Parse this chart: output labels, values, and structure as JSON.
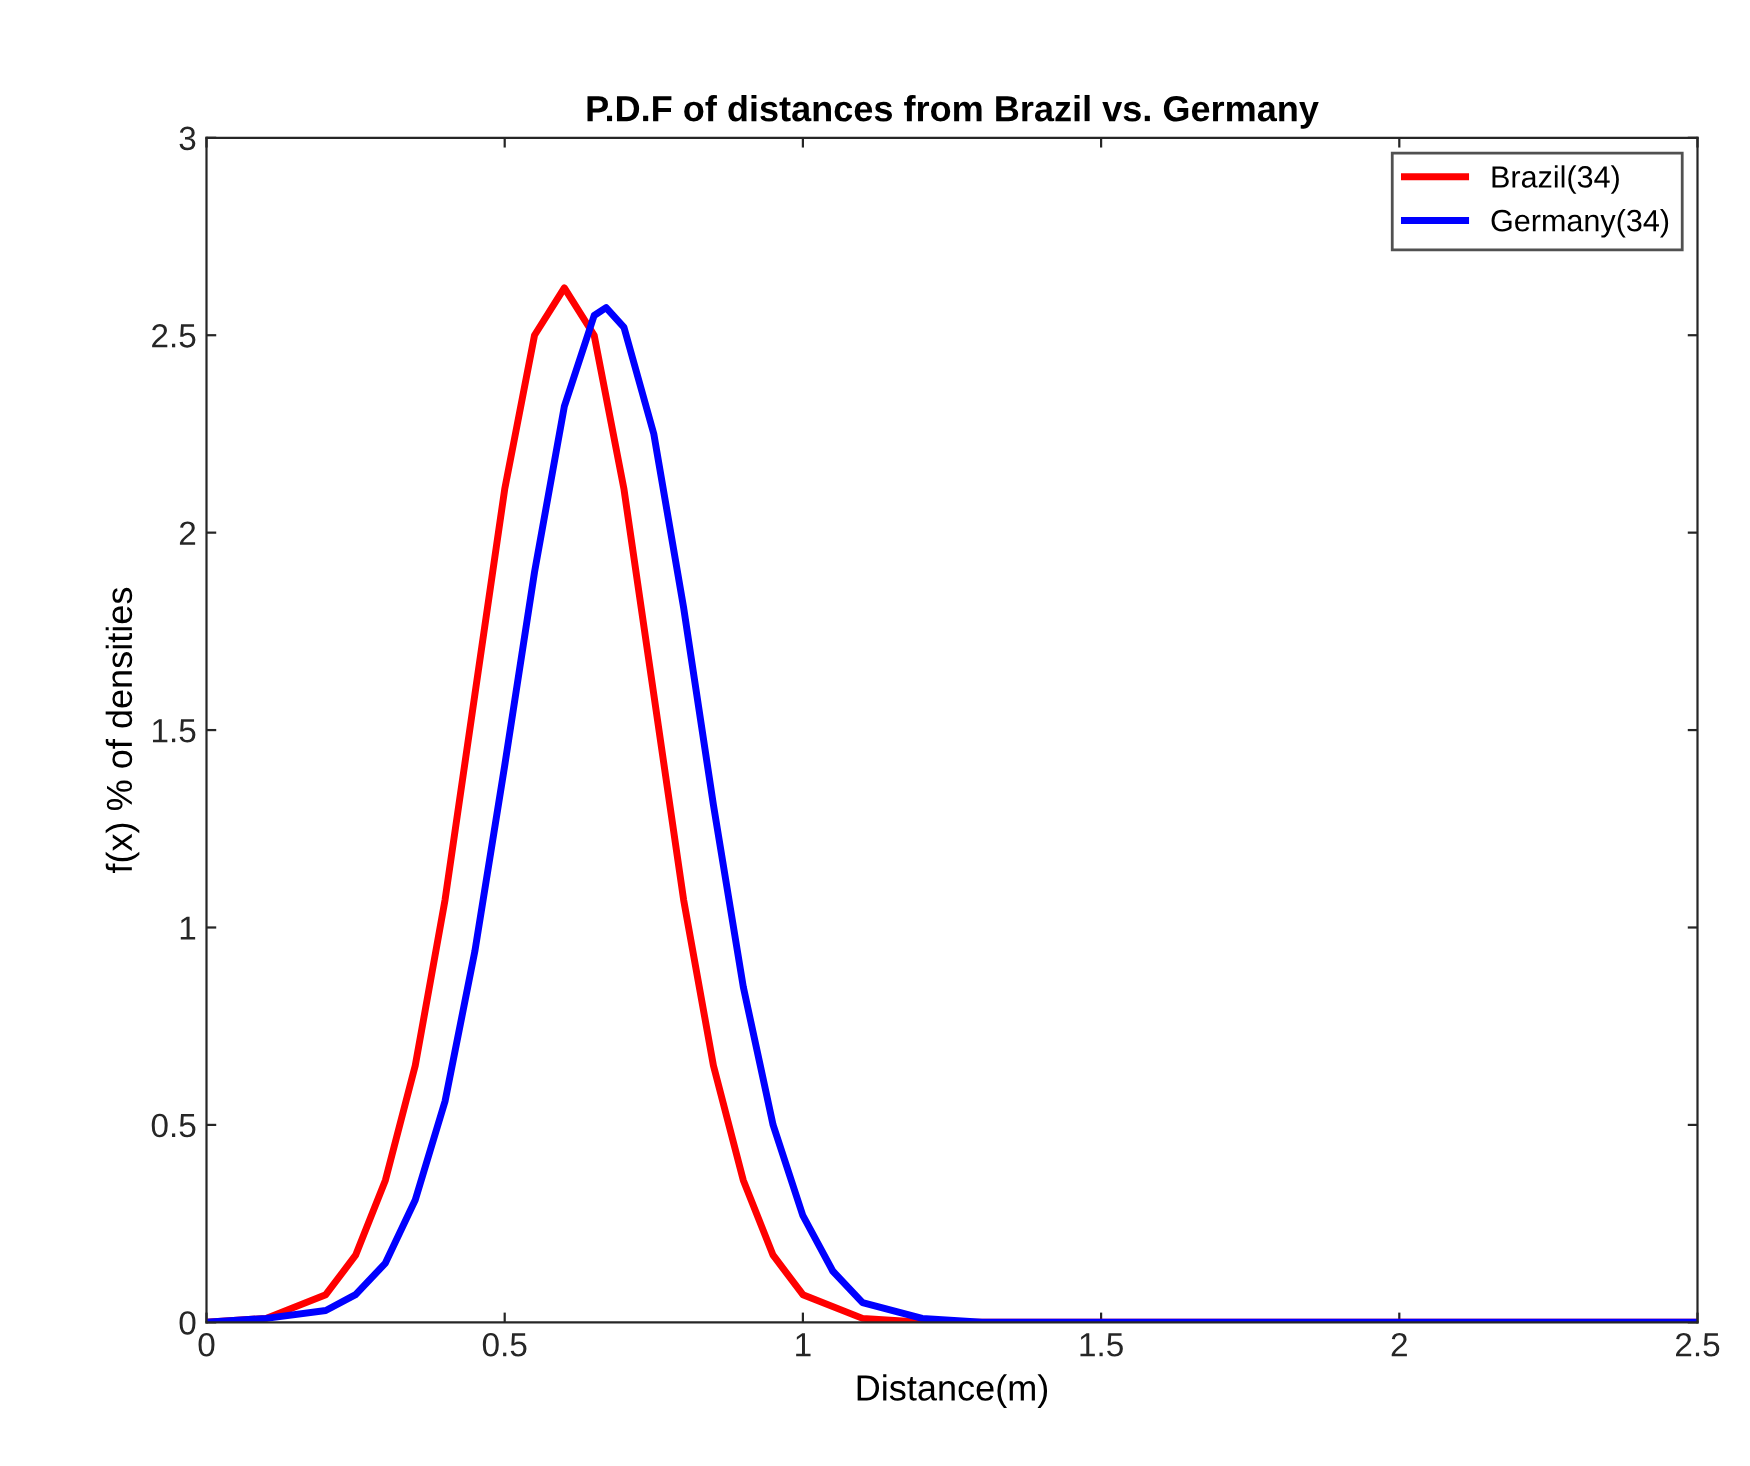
{
  "chart_data": {
    "type": "line",
    "title": "P.D.F of distances from Brazil vs. Germany",
    "xlabel": "Distance(m)",
    "ylabel": "f(x) % of densities",
    "series": [
      {
        "name": "Brazil(34)",
        "color": "#ff0000",
        "x": [
          0,
          0.1,
          0.2,
          0.25,
          0.3,
          0.35,
          0.4,
          0.45,
          0.5,
          0.55,
          0.6,
          0.65,
          0.7,
          0.75,
          0.8,
          0.85,
          0.9,
          0.95,
          1,
          1.1,
          1.2,
          2.5
        ],
        "values": [
          0,
          0.01,
          0.07,
          0.17,
          0.36,
          0.65,
          1.07,
          1.59,
          2.11,
          2.5,
          2.62,
          2.5,
          2.11,
          1.59,
          1.07,
          0.65,
          0.36,
          0.17,
          0.07,
          0.01,
          0,
          0
        ]
      },
      {
        "name": "Germany(34)",
        "color": "#0000ff",
        "x": [
          0,
          0.1,
          0.2,
          0.25,
          0.3,
          0.35,
          0.4,
          0.45,
          0.5,
          0.55,
          0.6,
          0.65,
          0.67,
          0.7,
          0.75,
          0.8,
          0.85,
          0.9,
          0.95,
          1,
          1.05,
          1.1,
          1.2,
          1.3,
          2.5
        ],
        "values": [
          0,
          0.01,
          0.03,
          0.07,
          0.15,
          0.31,
          0.56,
          0.94,
          1.41,
          1.9,
          2.32,
          2.55,
          2.57,
          2.52,
          2.25,
          1.81,
          1.31,
          0.85,
          0.5,
          0.27,
          0.13,
          0.05,
          0.01,
          0,
          0
        ]
      }
    ],
    "xlim": [
      0,
      2.5
    ],
    "xticks": [
      0,
      0.5,
      1,
      1.5,
      2,
      2.5
    ],
    "ylim": [
      0,
      3
    ],
    "yticks": [
      0,
      0.5,
      1,
      1.5,
      2,
      2.5,
      3
    ],
    "grid": false,
    "legend": "top right",
    "line_style": "solid"
  }
}
